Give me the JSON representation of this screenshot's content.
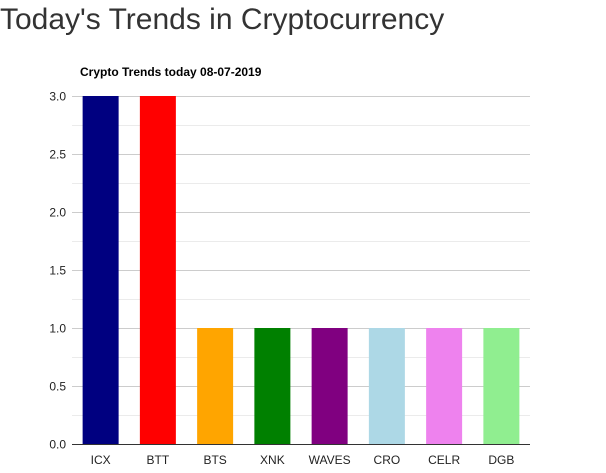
{
  "page": {
    "heading": "Today's Trends in Cryptocurrency"
  },
  "chart_data": {
    "type": "bar",
    "title": "Crypto Trends today 08-07-2019",
    "xlabel": "",
    "ylabel": "",
    "categories": [
      "ICX",
      "BTT",
      "BTS",
      "XNK",
      "WAVES",
      "CRO",
      "CELR",
      "DGB"
    ],
    "values": [
      3,
      3,
      1,
      1,
      1,
      1,
      1,
      1
    ],
    "colors": [
      "#000080",
      "#ff0000",
      "#ffa500",
      "#008000",
      "#800080",
      "#add8e6",
      "#ee82ee",
      "#90ee90"
    ],
    "ylim": [
      0,
      3
    ],
    "yticks": [
      0,
      0.5,
      1,
      1.5,
      2,
      2.5,
      3
    ],
    "ytick_labels": [
      "0.0",
      "0.5",
      "1.0",
      "1.5",
      "2.0",
      "2.5",
      "3.0"
    ],
    "grid": true,
    "legend": "none"
  }
}
